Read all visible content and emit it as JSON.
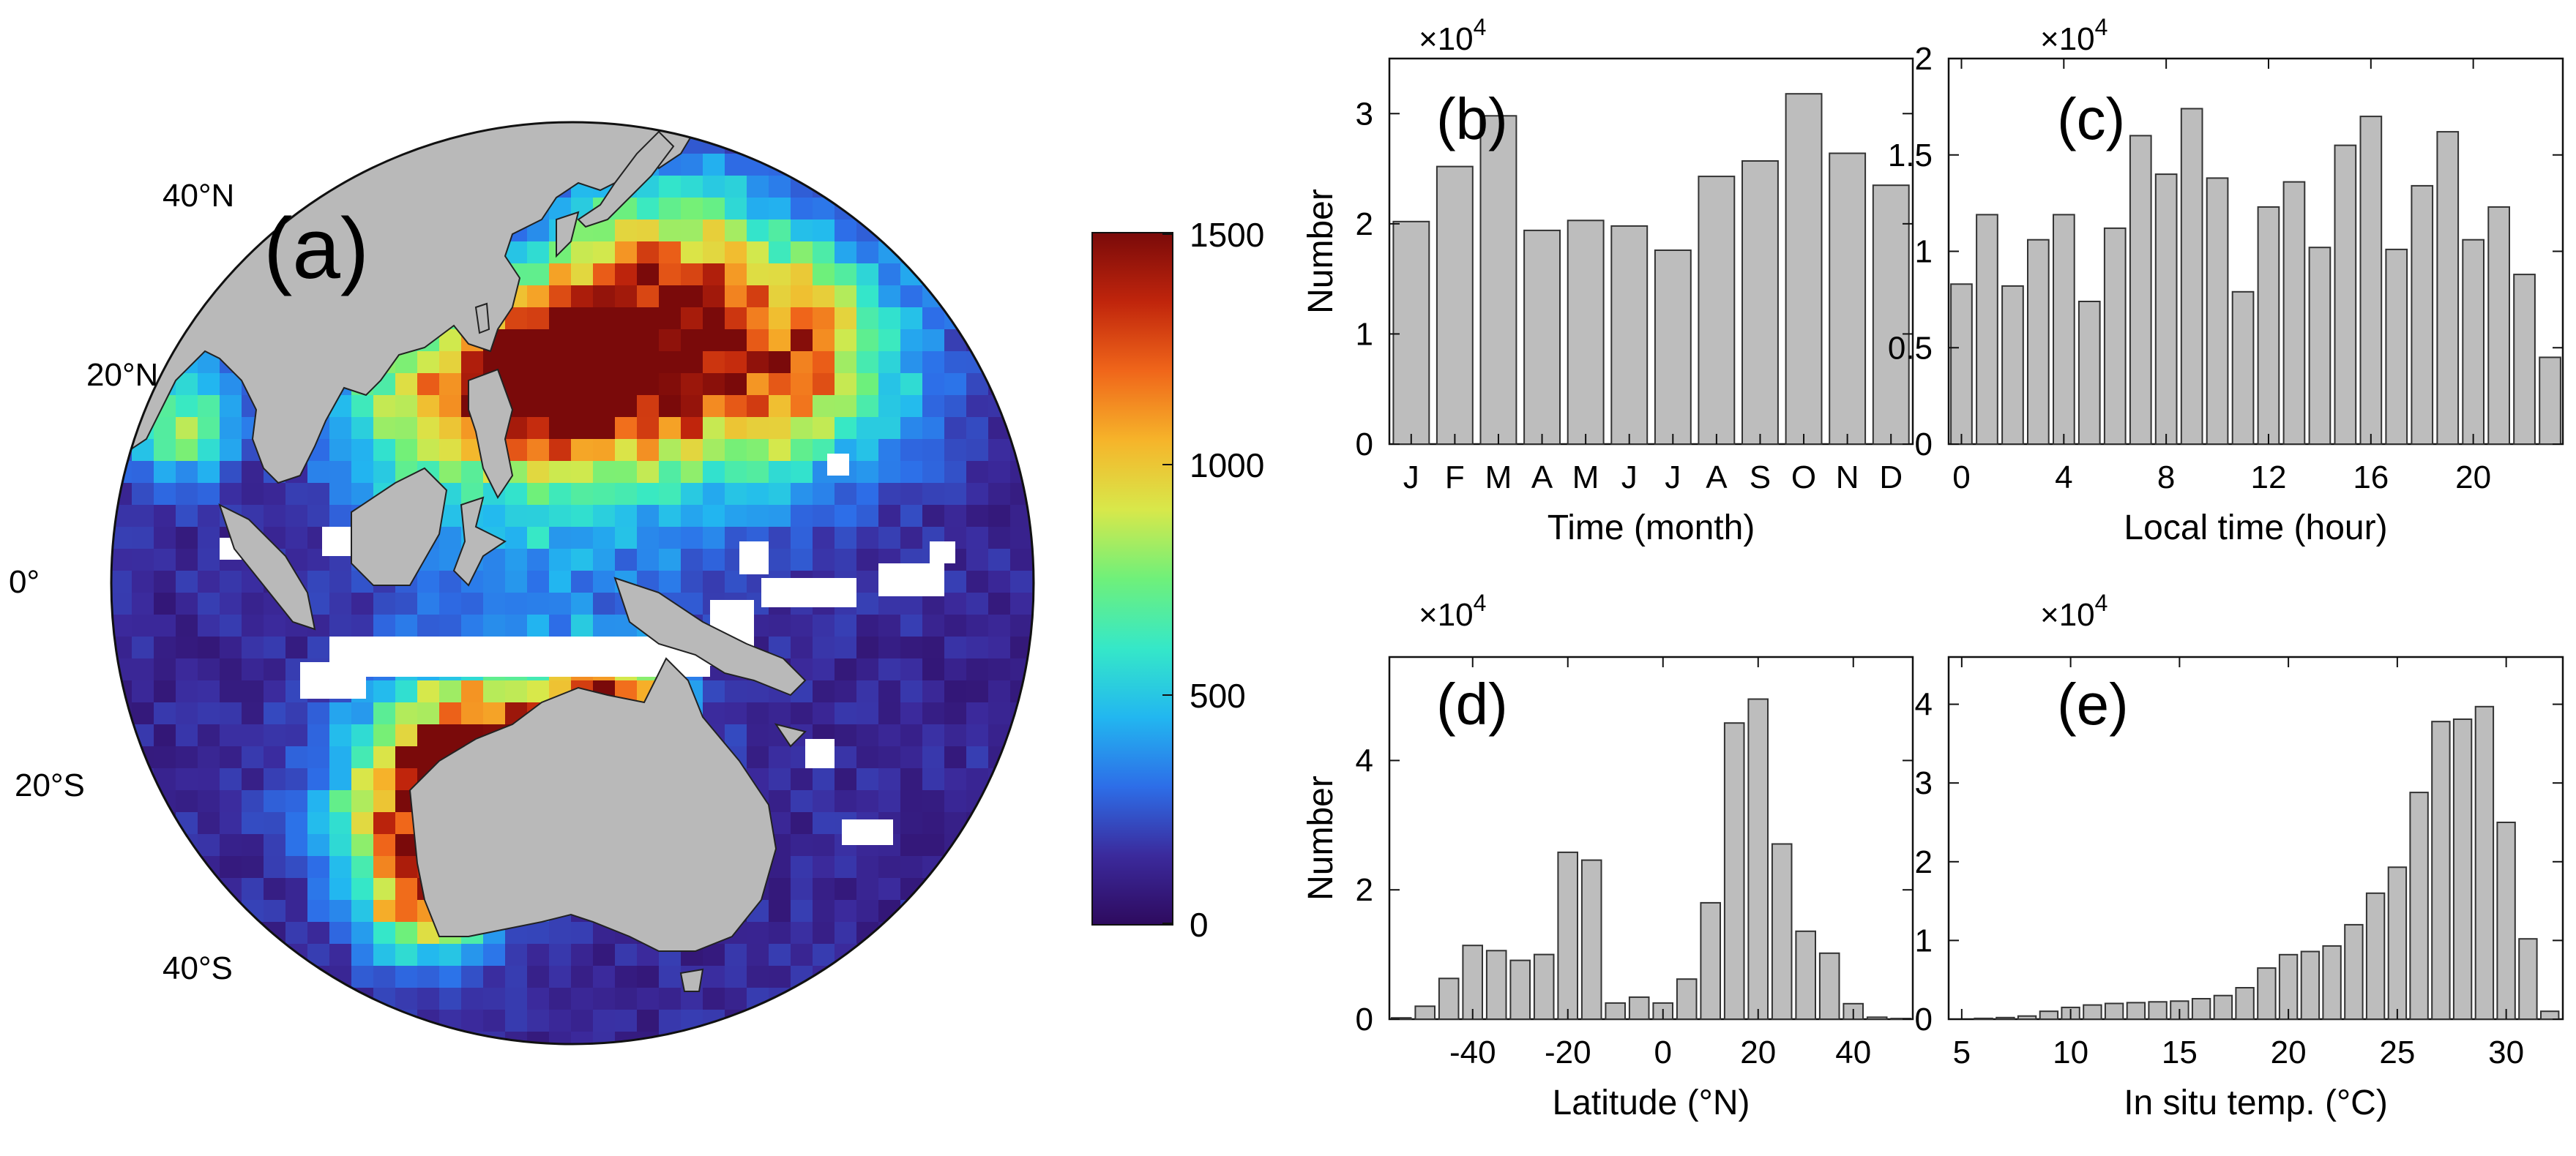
{
  "figure": {
    "map": {
      "panel_label": "(a)",
      "lat_labels": [
        "40°N",
        "20°N",
        "0°",
        "20°S",
        "40°S"
      ],
      "colorbar": {
        "ticks": [
          "1500",
          "1000",
          "500",
          "0"
        ],
        "range": [
          0,
          1500
        ]
      },
      "land_color": "#b9b9b9",
      "ocean_background": "#5a1a8f"
    },
    "colormap": [
      "#2e0a5e",
      "#3b2a9c",
      "#2d6ee8",
      "#22b7f0",
      "#35e8c8",
      "#6ff07a",
      "#d8e84a",
      "#f6b42a",
      "#f0661a",
      "#c0250c",
      "#7a0a0a"
    ],
    "bar_color": "#bdbdbd",
    "bar_edge_color": "#333333"
  },
  "chart_data": [
    {
      "panel": "b",
      "type": "bar",
      "panel_label": "(b)",
      "multiplier": "×10",
      "multiplier_exp": "4",
      "title": "",
      "xlabel": "Time (month)",
      "ylabel": "Number",
      "categories": [
        "J",
        "F",
        "M",
        "A",
        "M",
        "J",
        "J",
        "A",
        "S",
        "O",
        "N",
        "D"
      ],
      "values": [
        2.02,
        2.52,
        2.98,
        1.94,
        2.03,
        1.98,
        1.76,
        2.43,
        2.57,
        3.18,
        2.64,
        2.35
      ],
      "ylim": [
        0,
        3.5
      ],
      "yticks": [
        "0",
        "1",
        "2",
        "3"
      ],
      "ytick_values": [
        0,
        1,
        2,
        3
      ]
    },
    {
      "panel": "c",
      "type": "bar",
      "panel_label": "(c)",
      "multiplier": "×10",
      "multiplier_exp": "4",
      "title": "",
      "xlabel": "Local time (hour)",
      "ylabel": "",
      "x": [
        0,
        1,
        2,
        3,
        4,
        5,
        6,
        7,
        8,
        9,
        10,
        11,
        12,
        13,
        14,
        15,
        16,
        17,
        18,
        19,
        20,
        21,
        22,
        23
      ],
      "values": [
        0.83,
        1.19,
        0.82,
        1.06,
        1.19,
        0.74,
        1.12,
        1.6,
        1.4,
        1.74,
        1.38,
        0.79,
        1.23,
        1.36,
        1.02,
        1.55,
        1.7,
        1.01,
        1.34,
        1.62,
        1.06,
        1.23,
        0.88,
        0.45
      ],
      "xlim": [
        -0.5,
        23.5
      ],
      "xticks": [
        "0",
        "4",
        "8",
        "12",
        "16",
        "20"
      ],
      "xtick_values": [
        0,
        4,
        8,
        12,
        16,
        20
      ],
      "ylim": [
        0,
        2
      ],
      "yticks": [
        "0",
        "0.5",
        "1",
        "1.5",
        "2"
      ],
      "ytick_values": [
        0,
        0.5,
        1,
        1.5,
        2
      ]
    },
    {
      "panel": "d",
      "type": "bar",
      "panel_label": "(d)",
      "multiplier": "×10",
      "multiplier_exp": "4",
      "title": "",
      "xlabel": "Latitude (°N)",
      "ylabel": "Number",
      "x": [
        -55,
        -50,
        -45,
        -40,
        -35,
        -30,
        -25,
        -20,
        -15,
        -10,
        -5,
        0,
        5,
        10,
        15,
        20,
        25,
        30,
        35,
        40,
        45,
        50
      ],
      "values": [
        0.02,
        0.2,
        0.63,
        1.14,
        1.06,
        0.91,
        1.0,
        2.58,
        2.46,
        0.25,
        0.34,
        0.25,
        0.62,
        1.8,
        4.58,
        4.95,
        2.71,
        1.36,
        1.02,
        0.24,
        0.03,
        0.01
      ],
      "xlim": [
        -57.5,
        52.5
      ],
      "xticks": [
        "-40",
        "-20",
        "0",
        "20",
        "40"
      ],
      "xtick_values": [
        -40,
        -20,
        0,
        20,
        40
      ],
      "ylim": [
        0,
        5.6
      ],
      "yticks": [
        "0",
        "2",
        "4"
      ],
      "ytick_values": [
        0,
        2,
        4
      ]
    },
    {
      "panel": "e",
      "type": "bar",
      "panel_label": "(e)",
      "multiplier": "×10",
      "multiplier_exp": "4",
      "title": "",
      "xlabel": "In situ temp. (°C)",
      "ylabel": "",
      "x": [
        5,
        6,
        7,
        8,
        9,
        10,
        11,
        12,
        13,
        14,
        15,
        16,
        17,
        18,
        19,
        20,
        21,
        22,
        23,
        24,
        25,
        26,
        27,
        28,
        29,
        30,
        31,
        32
      ],
      "values": [
        0.0,
        0.01,
        0.02,
        0.04,
        0.1,
        0.15,
        0.18,
        0.2,
        0.21,
        0.22,
        0.23,
        0.26,
        0.3,
        0.4,
        0.65,
        0.82,
        0.86,
        0.93,
        1.2,
        1.6,
        1.93,
        2.88,
        3.78,
        3.81,
        3.97,
        2.5,
        1.02,
        0.1
      ],
      "xlim": [
        4.4,
        32.6
      ],
      "xticks": [
        "5",
        "10",
        "15",
        "20",
        "25",
        "30"
      ],
      "xtick_values": [
        5,
        10,
        15,
        20,
        25,
        30
      ],
      "ylim": [
        0,
        4.6
      ],
      "yticks": [
        "0",
        "1",
        "2",
        "3",
        "4"
      ],
      "ytick_values": [
        0,
        1,
        2,
        3,
        4
      ]
    }
  ]
}
